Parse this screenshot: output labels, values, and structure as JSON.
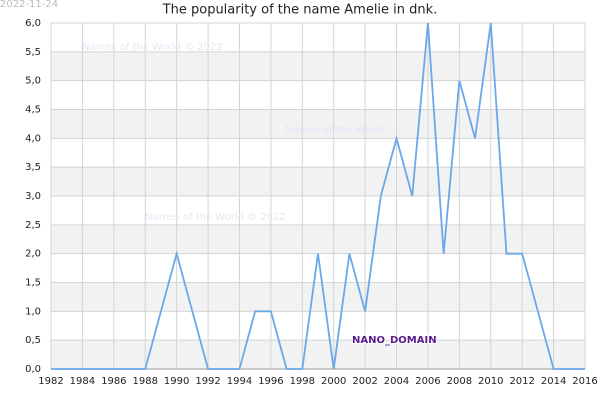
{
  "chart_data": {
    "type": "line",
    "title": "The popularity of the name Amelie in dnk.",
    "date": "2022-11-24",
    "watermarks": [
      "Names of the World © 2022",
      "Names of the World",
      "Names of the World © 2022",
      "NANO_DOMAIN"
    ],
    "x": [
      1982,
      1983,
      1984,
      1985,
      1986,
      1987,
      1988,
      1989,
      1990,
      1991,
      1992,
      1993,
      1994,
      1995,
      1996,
      1997,
      1998,
      1999,
      2000,
      2001,
      2002,
      2003,
      2004,
      2005,
      2006,
      2007,
      2008,
      2009,
      2010,
      2011,
      2012,
      2013,
      2014,
      2015,
      2016
    ],
    "series": [
      {
        "color": "#6aa8ea",
        "values": [
          0,
          0,
          0,
          0,
          0,
          0,
          0,
          1,
          2,
          1,
          0,
          0,
          0,
          1,
          1,
          0,
          0,
          2,
          0,
          2,
          1,
          3,
          4,
          3,
          6,
          2,
          5,
          4,
          6,
          2,
          2,
          1,
          0,
          0,
          0
        ]
      }
    ],
    "xlim": [
      1982,
      2016
    ],
    "xticks": [
      1982,
      1984,
      1986,
      1988,
      1990,
      1992,
      1994,
      1996,
      1998,
      2000,
      2002,
      2004,
      2006,
      2008,
      2010,
      2012,
      2014,
      2016
    ],
    "ylim": [
      0,
      6
    ],
    "yticks": [
      {
        "value": 0,
        "label": "0,0"
      },
      {
        "value": 0.5,
        "label": "0,5"
      },
      {
        "value": 1,
        "label": "1,0"
      },
      {
        "value": 1.5,
        "label": "1,5"
      },
      {
        "value": 2,
        "label": "2,0"
      },
      {
        "value": 2.5,
        "label": "2,5"
      },
      {
        "value": 3,
        "label": "3,0"
      },
      {
        "value": 3.5,
        "label": "3,5"
      },
      {
        "value": 4,
        "label": "4,0"
      },
      {
        "value": 4.5,
        "label": "4,5"
      },
      {
        "value": 5,
        "label": "5,0"
      },
      {
        "value": 5.5,
        "label": "5,5"
      },
      {
        "value": 6,
        "label": "6,0"
      }
    ],
    "grid": true
  }
}
